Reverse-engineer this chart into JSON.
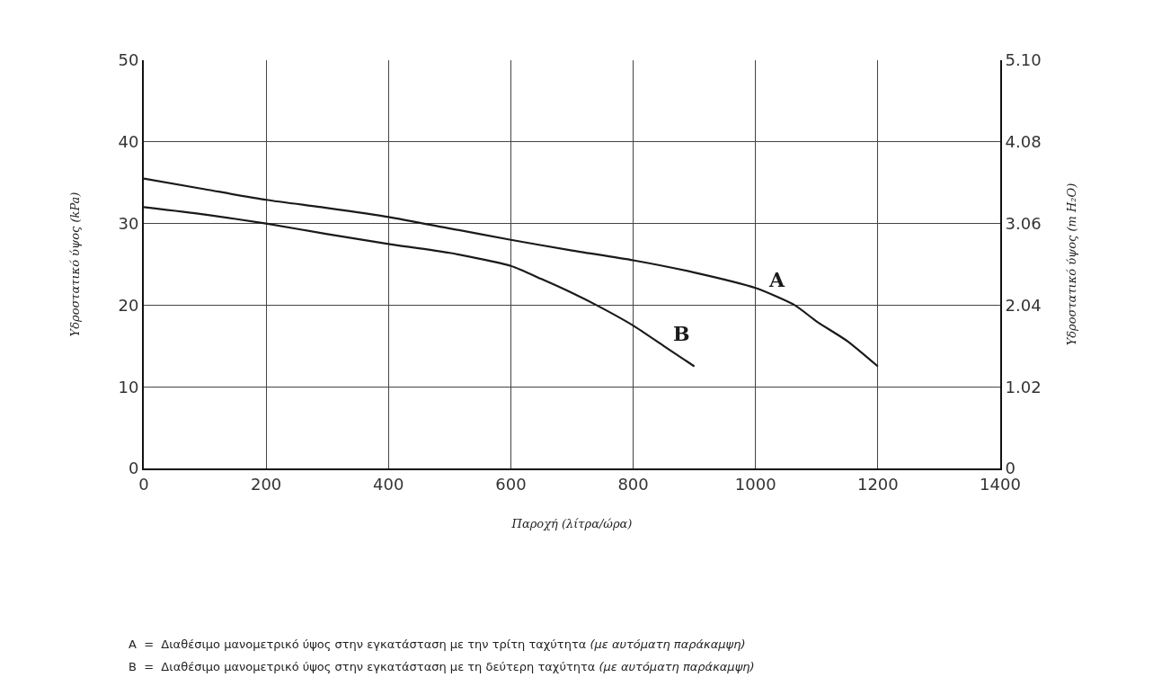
{
  "chart_data": {
    "type": "line",
    "xlabel": "Παροχή (λίτρα/ώρα)",
    "ylabel": "Υδροστατικό ύψος (kPa)",
    "y2label": "Υδροστατικό ύψος (m H₂O)",
    "xlim": [
      0,
      1400
    ],
    "xticks": [
      0,
      200,
      400,
      600,
      800,
      1000,
      1200,
      1400
    ],
    "ylim": [
      0,
      50
    ],
    "yticks": [
      0,
      10,
      20,
      30,
      40,
      50
    ],
    "y2lim": [
      0,
      5.1
    ],
    "y2ticks": [
      0,
      1.02,
      2.04,
      3.06,
      4.08,
      {
        "value": 5.1,
        "label": "5.10"
      }
    ],
    "grid": true,
    "legend": false,
    "marker": "none",
    "line_style": "solid",
    "series": [
      {
        "name": "A",
        "color": "#1a1a1a",
        "x": [
          0,
          100,
          200,
          300,
          400,
          500,
          600,
          700,
          800,
          900,
          1000,
          1064,
          1100,
          1150,
          1200
        ],
        "values": [
          35.5,
          34.2,
          32.9,
          31.9,
          30.8,
          29.4,
          28.0,
          26.7,
          25.5,
          24.0,
          22.1,
          20.0,
          18.0,
          15.6,
          12.5
        ]
      },
      {
        "name": "B",
        "color": "#1a1a1a",
        "x": [
          0,
          100,
          200,
          300,
          400,
          500,
          600,
          650,
          700,
          740,
          800,
          850,
          900
        ],
        "values": [
          32.0,
          31.1,
          30.0,
          28.7,
          27.5,
          26.4,
          24.8,
          23.2,
          21.5,
          20.0,
          17.5,
          15.0,
          12.5
        ]
      }
    ],
    "annotations": [
      "A  =  Διαθέσιμο μανομετρικό ύψος στην εγκατάσταση με την τρίτη ταχύτητα (με αυτόματη παράκαμψη)",
      "B  =  Διαθέσιμο μανομετρικό ύψος στην εγκατάσταση με τη δεύτερη ταχύτητα (με αυτόματη παράκαμψη)"
    ]
  }
}
